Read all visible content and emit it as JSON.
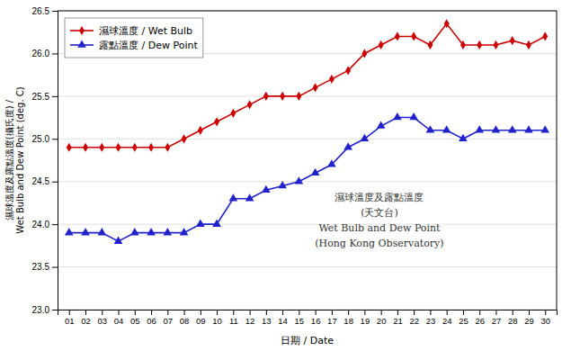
{
  "chart_data": {
    "type": "line",
    "xlabel": "日期 / Date",
    "ylabel": "濕球溫度及露點溫度(攝氏度) /\nWet Bulb and Dew Point (deg. C)",
    "annotations": [
      "濕球溫度及露點溫度",
      "(天文台)",
      "Wet Bulb and Dew Point",
      "(Hong Kong Observatory)"
    ],
    "x": [
      1,
      2,
      3,
      4,
      5,
      6,
      7,
      8,
      9,
      10,
      11,
      12,
      13,
      14,
      15,
      16,
      17,
      18,
      19,
      20,
      21,
      22,
      23,
      24,
      25,
      26,
      27,
      28,
      29,
      30
    ],
    "xlim": [
      0.3,
      30.7
    ],
    "xticks": [
      {
        "value": 1,
        "label": "01"
      },
      {
        "value": 2,
        "label": "02"
      },
      {
        "value": 3,
        "label": "03"
      },
      {
        "value": 4,
        "label": "04"
      },
      {
        "value": 5,
        "label": "05"
      },
      {
        "value": 6,
        "label": "06"
      },
      {
        "value": 7,
        "label": "07"
      },
      {
        "value": 8,
        "label": "08"
      },
      {
        "value": 9,
        "label": "09"
      },
      10,
      11,
      12,
      13,
      14,
      15,
      16,
      17,
      18,
      19,
      20,
      21,
      22,
      23,
      24,
      25,
      26,
      27,
      28,
      29,
      30
    ],
    "ylim": [
      23.0,
      26.5
    ],
    "yticks": [
      {
        "value": 23.0,
        "label": "23.0"
      },
      23.5,
      {
        "value": 24.0,
        "label": "24.0"
      },
      24.5,
      {
        "value": 25.0,
        "label": "25.0"
      },
      25.5,
      {
        "value": 26.0,
        "label": "26.0"
      },
      26.5
    ],
    "grid": true,
    "legend": "upper left",
    "series": [
      {
        "name": "濕球溫度 / Wet Bulb",
        "color": "#cc0000",
        "marker": "diamond",
        "values": [
          24.9,
          24.9,
          24.9,
          24.9,
          24.9,
          24.9,
          24.9,
          25.0,
          25.1,
          25.2,
          25.3,
          25.4,
          25.5,
          25.5,
          25.5,
          25.6,
          25.7,
          25.8,
          26.0,
          26.1,
          26.2,
          26.2,
          26.1,
          26.35,
          26.1,
          26.1,
          26.1,
          26.15,
          26.1,
          26.2
        ]
      },
      {
        "name": "露點溫度 / Dew Point",
        "color": "#2222cc",
        "marker": "triangle",
        "values": [
          23.9,
          23.9,
          23.9,
          23.8,
          23.9,
          23.9,
          23.9,
          23.9,
          24.0,
          24.0,
          24.3,
          24.3,
          24.4,
          24.45,
          24.5,
          24.6,
          24.7,
          24.9,
          25.0,
          25.15,
          25.25,
          25.25,
          25.1,
          25.1,
          25.0,
          25.1,
          25.1,
          25.1,
          25.1,
          25.1
        ]
      }
    ]
  }
}
